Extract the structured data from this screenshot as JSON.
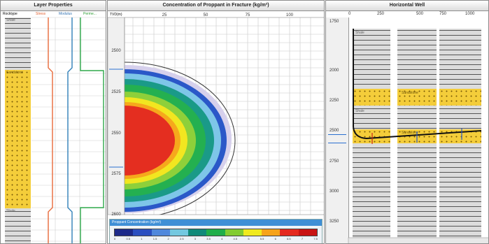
{
  "layer_panel": {
    "title": "Layer Properties",
    "col_rocktype": "Rocktype",
    "col_stress": "Stress",
    "col_modulus": "Modulus",
    "col_perm": "Perme...",
    "layer_labels": [
      "Shale",
      "Sandstone",
      "Shale"
    ]
  },
  "conc_panel": {
    "title": "Concentration of Proppant in Fracture (kg/m²)",
    "depth_unit": "TVD(m)",
    "x_ticks": [
      "25",
      "50",
      "75",
      "100"
    ],
    "y_ticks": [
      "2500",
      "2525",
      "2550",
      "2575",
      "2600"
    ],
    "legend_title": "Proppant Concentration (kg/m²)",
    "legend_values": [
      "0",
      "0.5",
      "1",
      "1.5",
      "2",
      "2.5",
      "3",
      "3.5",
      "4",
      "4.5",
      "5",
      "5.5",
      "6",
      "6.5",
      "7",
      "7.5"
    ],
    "legend_colors": [
      "#1c2a8a",
      "#2a4fc0",
      "#4f88dc",
      "#72c8e0",
      "#0f8a7a",
      "#1fae4a",
      "#82cc32",
      "#f0ea1e",
      "#f6a31a",
      "#e42a20",
      "#c81414"
    ]
  },
  "well_panel": {
    "title": "Horizontal Well",
    "x_ticks": [
      "0",
      "250",
      "500",
      "750",
      "1000"
    ],
    "y_ticks": [
      "1750",
      "2000",
      "2250",
      "2500",
      "2750",
      "3000",
      "3250"
    ],
    "layer_labels": [
      "Shale",
      "Sandstone",
      "Shale",
      "Sandstone"
    ]
  }
}
